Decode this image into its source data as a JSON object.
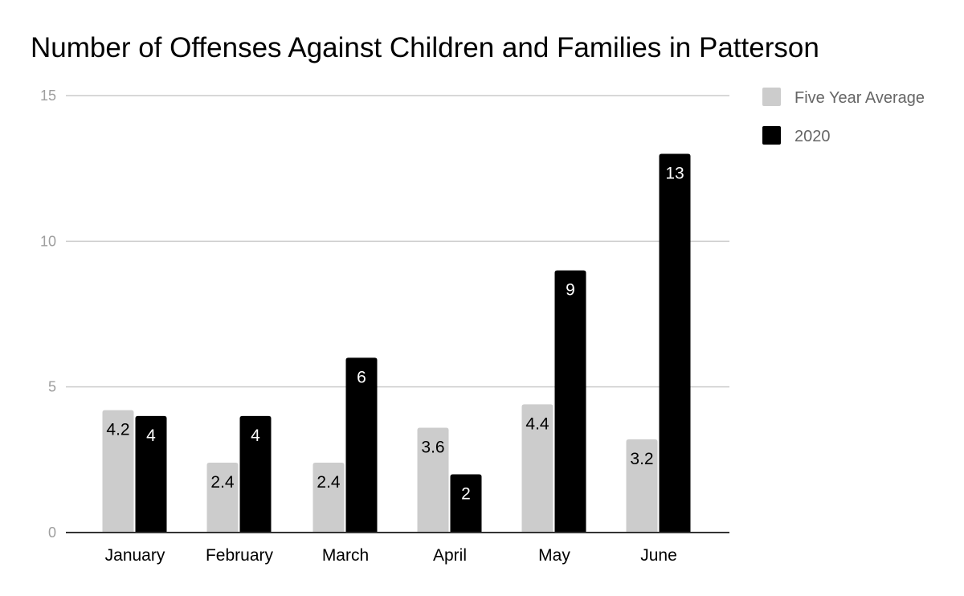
{
  "chart_data": {
    "type": "bar",
    "title": "Number of Offenses Against Children and Families in Patterson",
    "xlabel": "",
    "ylabel": "",
    "categories": [
      "January",
      "February",
      "March",
      "April",
      "May",
      "June"
    ],
    "series": [
      {
        "name": "Five Year Average",
        "values": [
          4.2,
          2.4,
          2.4,
          3.6,
          4.4,
          3.2
        ],
        "labels": [
          "4.2",
          "2.4",
          "2.4",
          "3.6",
          "4.4",
          "3.2"
        ],
        "color": "#cccccc",
        "label_color": "#000000"
      },
      {
        "name": "2020",
        "values": [
          4,
          4,
          6,
          2,
          9,
          13
        ],
        "labels": [
          "4",
          "4",
          "6",
          "2",
          "9",
          "13"
        ],
        "color": "#000000",
        "label_color": "#ffffff"
      }
    ],
    "ylim": [
      0,
      15
    ],
    "yticks": [
      0,
      5,
      10,
      15
    ],
    "ytick_labels": [
      "0",
      "5",
      "10",
      "15"
    ],
    "grid": true,
    "legend_position": "top-right"
  }
}
